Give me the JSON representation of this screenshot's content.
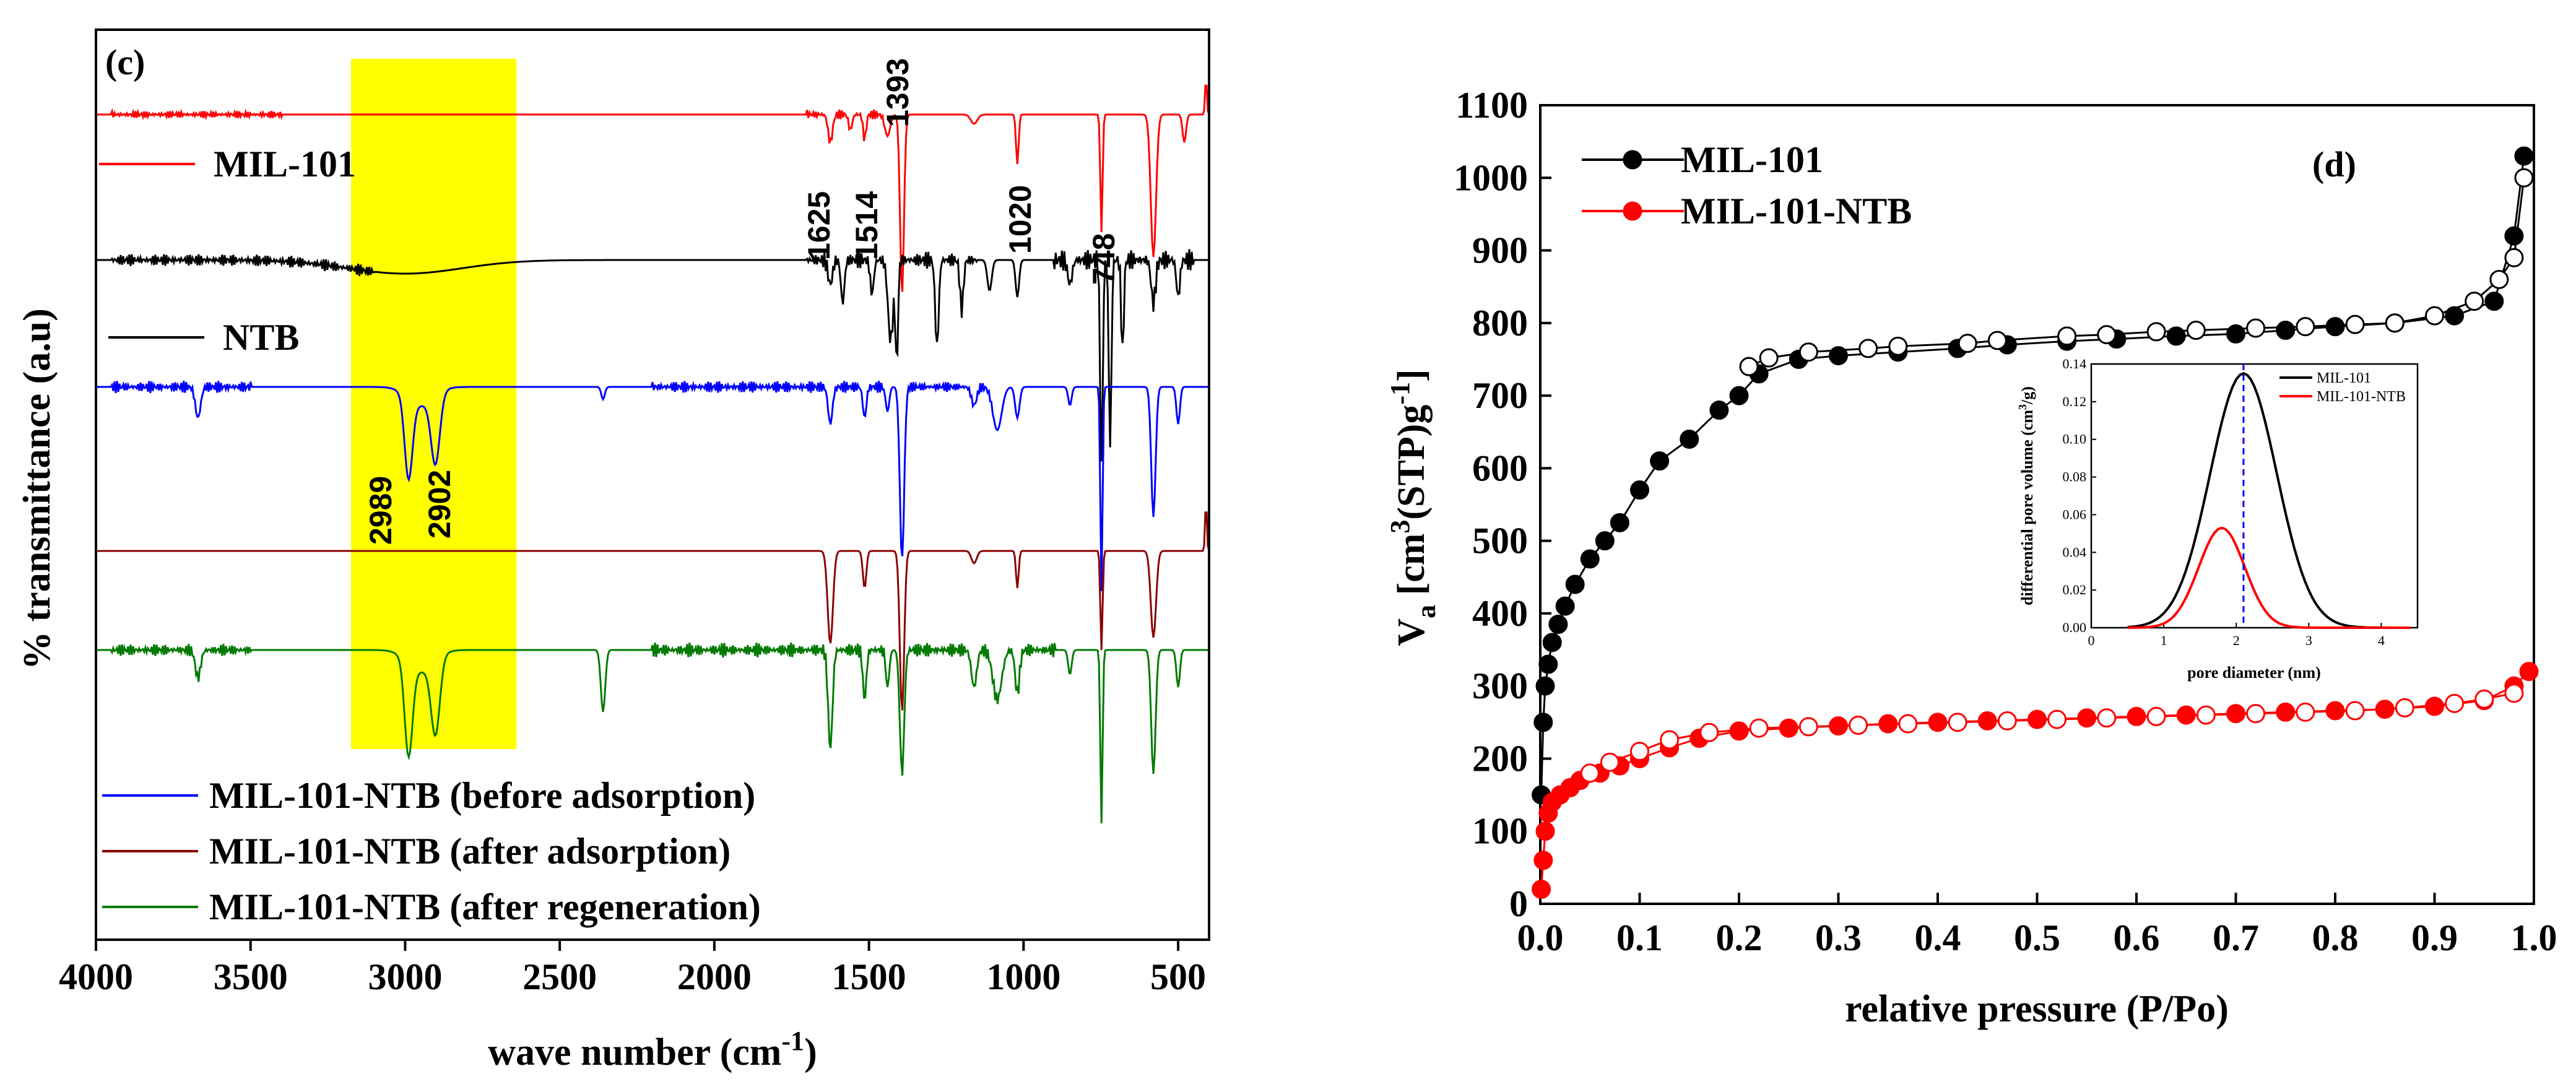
{
  "chart_data": [
    {
      "type": "line",
      "panel_label": "(c)",
      "xlabel": "wave number (cm",
      "xlabel_sup": "-1",
      "xlabel_end": ")",
      "ylabel": "% transmittance (a.u)",
      "xlim": [
        4000,
        400
      ],
      "x_ticks": [
        "4000",
        "3500",
        "3000",
        "2500",
        "2000",
        "1500",
        "1000",
        "500"
      ],
      "highlight": {
        "from": 3175,
        "to": 2640,
        "color": "#ffff00"
      },
      "peak_labels": [
        "1625",
        "1514",
        "1393",
        "1020",
        "748",
        "2989",
        "2902"
      ],
      "series": [
        {
          "name": "MIL-101",
          "color": "#ff0000"
        },
        {
          "name": "NTB",
          "color": "#000000"
        },
        {
          "name": "MIL-101-NTB (before adsorption)",
          "color": "#0000ff"
        },
        {
          "name": "MIL-101-NTB (after adsorption)",
          "color": "#8b0000"
        },
        {
          "name": "MIL-101-NTB (after regeneration)",
          "color": "#007a00"
        }
      ]
    },
    {
      "type": "scatter",
      "panel_label": "(d)",
      "xlabel": "relative pressure (P/Po)",
      "ylabel": "V",
      "ylabel_sub": "a",
      "ylabel_rest_1": " [cm",
      "ylabel_sup1": "3",
      "ylabel_rest_2": "(STP)g",
      "ylabel_sup2": "-1",
      "ylabel_rest_3": "]",
      "xlim": [
        0.0,
        1.0
      ],
      "ylim": [
        0,
        1100
      ],
      "x_ticks": [
        "0.0",
        "0.1",
        "0.2",
        "0.3",
        "0.4",
        "0.5",
        "0.6",
        "0.7",
        "0.8",
        "0.9",
        "1.0"
      ],
      "y_ticks": [
        "0",
        "100",
        "200",
        "300",
        "400",
        "500",
        "600",
        "700",
        "800",
        "900",
        "1000",
        "1100"
      ],
      "series": [
        {
          "name": "MIL-101",
          "color": "#000000",
          "adsorption": {
            "x": [
              0.001,
              0.003,
              0.005,
              0.008,
              0.012,
              0.018,
              0.025,
              0.035,
              0.05,
              0.065,
              0.08,
              0.1,
              0.12,
              0.15,
              0.18,
              0.2,
              0.22,
              0.26,
              0.3,
              0.36,
              0.42,
              0.47,
              0.53,
              0.58,
              0.64,
              0.7,
              0.75,
              0.8,
              0.86,
              0.92,
              0.96,
              0.98,
              0.99
            ],
            "y": [
              150,
              250,
              300,
              330,
              360,
              385,
              410,
              440,
              475,
              500,
              525,
              570,
              610,
              640,
              680,
              700,
              730,
              750,
              755,
              760,
              765,
              770,
              775,
              778,
              782,
              785,
              790,
              795,
              800,
              810,
              830,
              920,
              1030
            ]
          },
          "desorption": {
            "x": [
              0.99,
              0.98,
              0.965,
              0.94,
              0.9,
              0.86,
              0.82,
              0.77,
              0.72,
              0.66,
              0.62,
              0.57,
              0.53,
              0.46,
              0.43,
              0.36,
              0.33,
              0.27,
              0.23,
              0.21
            ],
            "y": [
              1000,
              890,
              860,
              830,
              810,
              800,
              798,
              795,
              793,
              790,
              788,
              784,
              782,
              776,
              772,
              768,
              765,
              760,
              752,
              740
            ]
          }
        },
        {
          "name": "MIL-101-NTB",
          "color": "#ff0000",
          "adsorption": {
            "x": [
              0.001,
              0.003,
              0.005,
              0.008,
              0.012,
              0.02,
              0.03,
              0.04,
              0.06,
              0.08,
              0.1,
              0.13,
              0.16,
              0.2,
              0.25,
              0.3,
              0.35,
              0.4,
              0.45,
              0.5,
              0.55,
              0.6,
              0.65,
              0.7,
              0.75,
              0.8,
              0.85,
              0.9,
              0.95,
              0.98,
              0.995
            ],
            "y": [
              20,
              60,
              100,
              125,
              140,
              150,
              160,
              170,
              180,
              190,
              200,
              215,
              228,
              238,
              242,
              245,
              248,
              250,
              252,
              254,
              256,
              258,
              260,
              262,
              264,
              266,
              268,
              272,
              280,
              300,
              320
            ]
          },
          "desorption": {
            "x": [
              0.98,
              0.95,
              0.92,
              0.87,
              0.82,
              0.77,
              0.72,
              0.67,
              0.62,
              0.57,
              0.52,
              0.47,
              0.42,
              0.37,
              0.32,
              0.27,
              0.22,
              0.17,
              0.13,
              0.1,
              0.07,
              0.05
            ],
            "y": [
              290,
              282,
              276,
              270,
              266,
              264,
              262,
              260,
              258,
              256,
              254,
              252,
              250,
              248,
              246,
              244,
              242,
              236,
              226,
              210,
              195,
              180
            ]
          }
        }
      ],
      "inset": {
        "type": "line",
        "xlabel": "pore diameter (nm)",
        "ylabel": "differential pore volume (cm",
        "ylabel_sup": "3",
        "ylabel_end": "/g)",
        "xlim": [
          0,
          4.5
        ],
        "ylim": [
          0,
          0.14
        ],
        "x_ticks": [
          "0",
          "1",
          "2",
          "3",
          "4"
        ],
        "y_ticks": [
          "0.00",
          "0.02",
          "0.04",
          "0.06",
          "0.08",
          "0.10",
          "0.12",
          "0.14"
        ],
        "series": [
          {
            "name": "MIL-101",
            "color": "#000000",
            "peak_x": 2.1,
            "peak_y": 0.135,
            "width": 0.65
          },
          {
            "name": "MIL-101-NTB",
            "color": "#ff0000",
            "peak_x": 1.8,
            "peak_y": 0.053,
            "width": 0.45
          }
        ],
        "vline_x": 2.1,
        "vline_color": "#0000ff"
      }
    }
  ]
}
